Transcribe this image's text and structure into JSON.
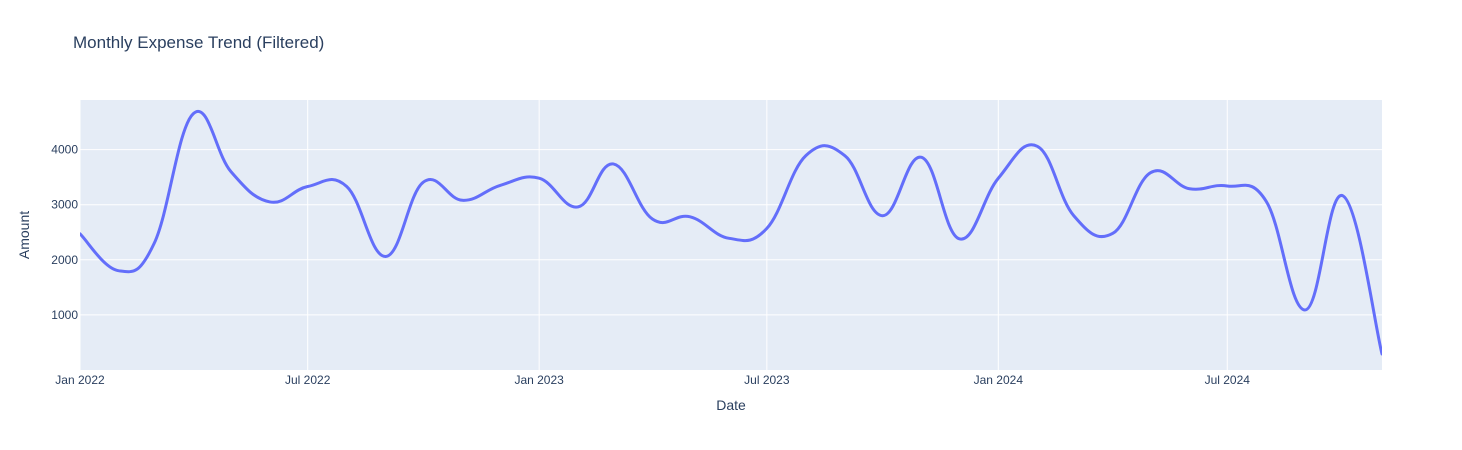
{
  "chart_data": {
    "type": "line",
    "title": "Monthly Expense Trend (Filtered)",
    "xlabel": "Date",
    "ylabel": "Amount",
    "x": [
      "2022-01-01",
      "2022-02-01",
      "2022-03-01",
      "2022-04-01",
      "2022-05-01",
      "2022-06-01",
      "2022-07-01",
      "2022-08-01",
      "2022-09-01",
      "2022-10-01",
      "2022-11-01",
      "2022-12-01",
      "2023-01-01",
      "2023-02-01",
      "2023-03-01",
      "2023-04-01",
      "2023-05-01",
      "2023-06-01",
      "2023-07-01",
      "2023-08-01",
      "2023-09-01",
      "2023-10-01",
      "2023-11-01",
      "2023-12-01",
      "2024-01-01",
      "2024-02-01",
      "2024-03-01",
      "2024-04-01",
      "2024-05-01",
      "2024-06-01",
      "2024-07-01",
      "2024-08-01",
      "2024-09-01",
      "2024-10-01",
      "2024-11-01"
    ],
    "series": [
      {
        "name": "",
        "values": [
          2470,
          1800,
          2300,
          4650,
          3600,
          3050,
          3330,
          3330,
          2060,
          3410,
          3080,
          3350,
          3480,
          2960,
          3740,
          2740,
          2780,
          2390,
          2570,
          3890,
          3890,
          2800,
          3860,
          2380,
          3480,
          4060,
          2800,
          2480,
          3580,
          3290,
          3340,
          3060,
          1090,
          3160,
          290
        ]
      }
    ],
    "xlim": [
      "2022-01-01",
      "2024-11-01"
    ],
    "ylim": [
      0,
      4900
    ],
    "x_ticks": [
      {
        "label": "Jan 2022",
        "date": "2022-01-01"
      },
      {
        "label": "Jul 2022",
        "date": "2022-07-01"
      },
      {
        "label": "Jan 2023",
        "date": "2023-01-01"
      },
      {
        "label": "Jul 2023",
        "date": "2023-07-01"
      },
      {
        "label": "Jan 2024",
        "date": "2024-01-01"
      },
      {
        "label": "Jul 2024",
        "date": "2024-07-01"
      }
    ],
    "y_ticks": [
      1000,
      2000,
      3000,
      4000
    ],
    "grid": true,
    "colors": {
      "line": "#636efa",
      "plot_bg": "#e5ecf6",
      "grid": "#ffffff"
    }
  }
}
